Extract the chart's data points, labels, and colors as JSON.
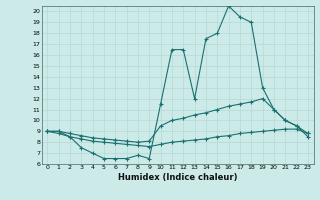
{
  "xlabel": "Humidex (Indice chaleur)",
  "xlim": [
    -0.5,
    23.5
  ],
  "ylim": [
    6,
    20.5
  ],
  "yticks": [
    6,
    7,
    8,
    9,
    10,
    11,
    12,
    13,
    14,
    15,
    16,
    17,
    18,
    19,
    20
  ],
  "xticks": [
    0,
    1,
    2,
    3,
    4,
    5,
    6,
    7,
    8,
    9,
    10,
    11,
    12,
    13,
    14,
    15,
    16,
    17,
    18,
    19,
    20,
    21,
    22,
    23
  ],
  "bg_color": "#cceae8",
  "line_color": "#1a7070",
  "grid_color": "#b0d5d0",
  "line1_x": [
    0,
    1,
    2,
    3,
    4,
    5,
    6,
    7,
    8,
    9,
    10,
    11,
    12,
    13,
    14,
    15,
    16,
    17,
    18,
    19,
    20,
    21,
    22,
    23
  ],
  "line1_y": [
    9,
    9,
    8.5,
    7.5,
    7.0,
    6.5,
    6.5,
    6.5,
    6.8,
    6.5,
    11.5,
    16.5,
    16.5,
    12.0,
    17.5,
    18.0,
    20.5,
    19.5,
    19.0,
    13.0,
    11.0,
    10.0,
    9.5,
    8.5
  ],
  "line2_x": [
    0,
    1,
    2,
    3,
    4,
    5,
    6,
    7,
    8,
    9,
    10,
    11,
    12,
    13,
    14,
    15,
    16,
    17,
    18,
    19,
    20,
    21,
    22,
    23
  ],
  "line2_y": [
    9.0,
    9.0,
    8.8,
    8.6,
    8.4,
    8.3,
    8.2,
    8.1,
    8.0,
    8.1,
    9.5,
    10.0,
    10.2,
    10.5,
    10.7,
    11.0,
    11.3,
    11.5,
    11.7,
    12.0,
    11.0,
    10.0,
    9.5,
    8.8
  ],
  "line3_x": [
    0,
    1,
    2,
    3,
    4,
    5,
    6,
    7,
    8,
    9,
    10,
    11,
    12,
    13,
    14,
    15,
    16,
    17,
    18,
    19,
    20,
    21,
    22,
    23
  ],
  "line3_y": [
    9.0,
    8.8,
    8.5,
    8.3,
    8.1,
    8.0,
    7.9,
    7.8,
    7.7,
    7.6,
    7.8,
    8.0,
    8.1,
    8.2,
    8.3,
    8.5,
    8.6,
    8.8,
    8.9,
    9.0,
    9.1,
    9.2,
    9.2,
    8.8
  ]
}
